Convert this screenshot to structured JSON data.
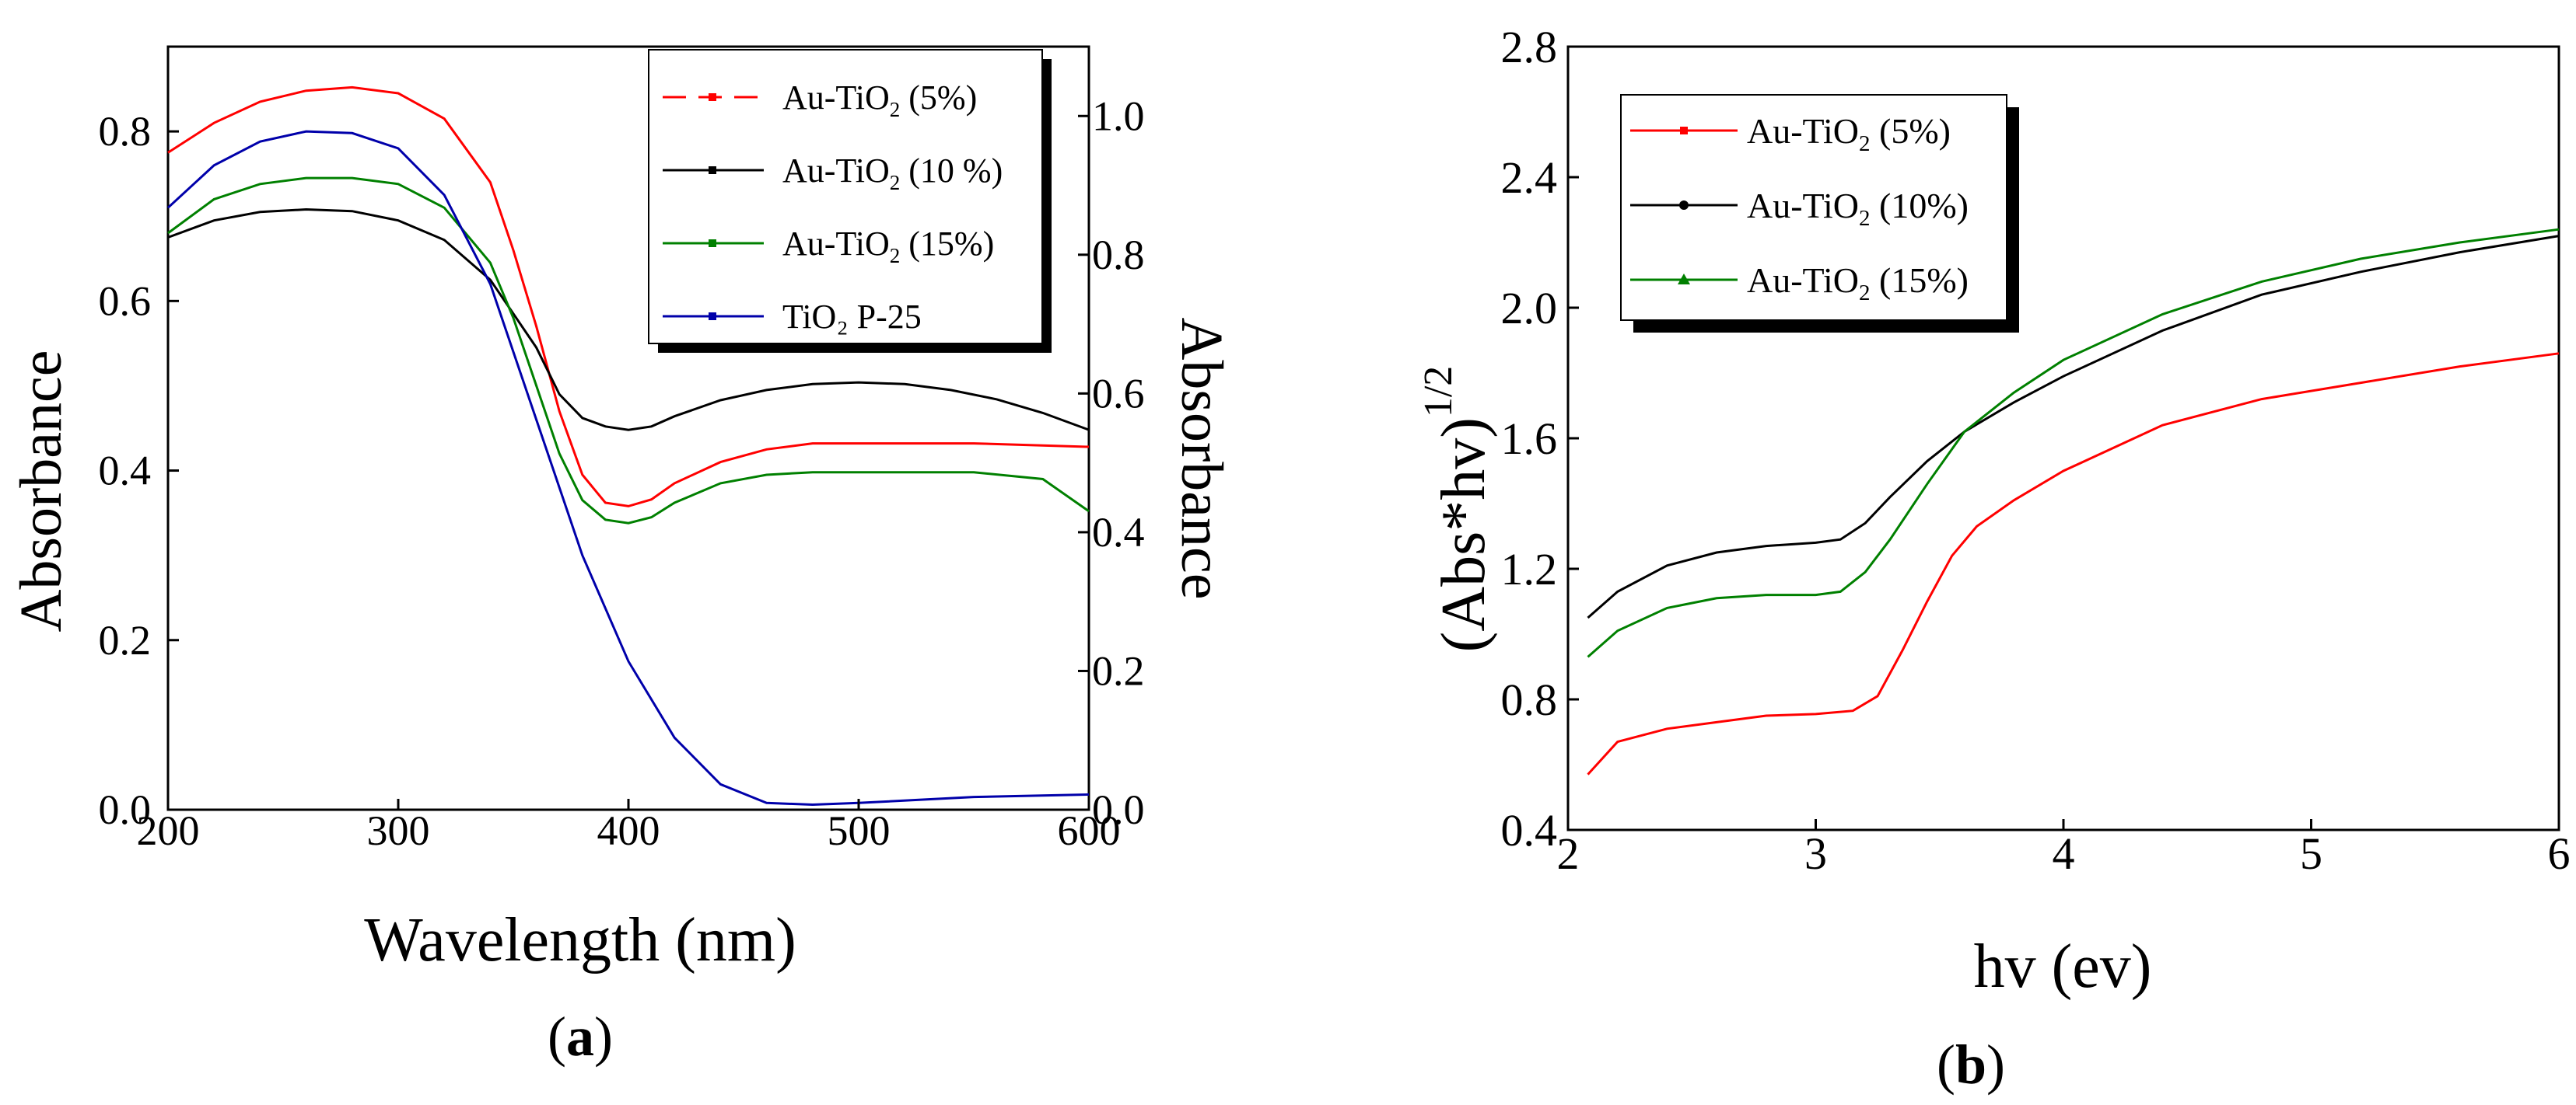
{
  "chart_data": [
    {
      "id": "a",
      "type": "line",
      "panel_label": "a",
      "xlabel": "Wavelength (nm)",
      "ylabel": "Absorbance",
      "ylabel_right": "Absorbance",
      "xlim": [
        200,
        600
      ],
      "ylim": [
        0,
        0.9
      ],
      "ylim_right": [
        0,
        1.1
      ],
      "x_ticks": [
        "200",
        "300",
        "400",
        "500",
        "600"
      ],
      "x_tick_values": [
        200,
        300,
        400,
        500,
        600
      ],
      "y_ticks": [
        "0.0",
        "0.2",
        "0.4",
        "0.6",
        "0.8"
      ],
      "y_tick_values": [
        0,
        0.2,
        0.4,
        0.6,
        0.8
      ],
      "y_ticks_right": [
        "0.0",
        "0.2",
        "0.4",
        "0.6",
        "0.8",
        "1.0"
      ],
      "y_tick_values_right": [
        0,
        0.2,
        0.4,
        0.6,
        0.8,
        1.0
      ],
      "legend_position": "top-right",
      "series": [
        {
          "name": "Au-TiO2 (5%)",
          "legend_main": "Au-TiO",
          "legend_sub": "2",
          "legend_tail": " (5%)",
          "color": "#ff0000",
          "dashed": true,
          "points": [
            [
              200,
              0.775
            ],
            [
              220,
              0.81
            ],
            [
              240,
              0.835
            ],
            [
              260,
              0.848
            ],
            [
              280,
              0.852
            ],
            [
              300,
              0.845
            ],
            [
              320,
              0.815
            ],
            [
              340,
              0.74
            ],
            [
              350,
              0.66
            ],
            [
              360,
              0.57
            ],
            [
              370,
              0.47
            ],
            [
              380,
              0.395
            ],
            [
              390,
              0.362
            ],
            [
              400,
              0.358
            ],
            [
              410,
              0.366
            ],
            [
              420,
              0.385
            ],
            [
              440,
              0.41
            ],
            [
              460,
              0.425
            ],
            [
              480,
              0.432
            ],
            [
              500,
              0.432
            ],
            [
              550,
              0.432
            ],
            [
              600,
              0.428
            ]
          ]
        },
        {
          "name": "Au-TiO2 (10 %)",
          "legend_main": "Au-TiO",
          "legend_sub": "2",
          "legend_tail": " (10 %)",
          "color": "#000000",
          "dashed": false,
          "points": [
            [
              200,
              0.675
            ],
            [
              220,
              0.695
            ],
            [
              240,
              0.705
            ],
            [
              260,
              0.708
            ],
            [
              280,
              0.706
            ],
            [
              300,
              0.695
            ],
            [
              320,
              0.672
            ],
            [
              340,
              0.625
            ],
            [
              360,
              0.545
            ],
            [
              370,
              0.49
            ],
            [
              380,
              0.462
            ],
            [
              390,
              0.452
            ],
            [
              400,
              0.448
            ],
            [
              410,
              0.452
            ],
            [
              420,
              0.464
            ],
            [
              440,
              0.483
            ],
            [
              460,
              0.495
            ],
            [
              480,
              0.502
            ],
            [
              500,
              0.504
            ],
            [
              520,
              0.502
            ],
            [
              540,
              0.495
            ],
            [
              560,
              0.484
            ],
            [
              580,
              0.468
            ],
            [
              600,
              0.448
            ]
          ]
        },
        {
          "name": "Au-TiO2 (15%)",
          "legend_main": "Au-TiO",
          "legend_sub": "2",
          "legend_tail": " (15%)",
          "color": "#008000",
          "dashed": false,
          "points": [
            [
              200,
              0.68
            ],
            [
              220,
              0.72
            ],
            [
              240,
              0.738
            ],
            [
              260,
              0.745
            ],
            [
              280,
              0.745
            ],
            [
              300,
              0.738
            ],
            [
              320,
              0.71
            ],
            [
              340,
              0.645
            ],
            [
              350,
              0.58
            ],
            [
              360,
              0.5
            ],
            [
              370,
              0.42
            ],
            [
              380,
              0.365
            ],
            [
              390,
              0.342
            ],
            [
              400,
              0.338
            ],
            [
              410,
              0.345
            ],
            [
              420,
              0.362
            ],
            [
              440,
              0.385
            ],
            [
              460,
              0.395
            ],
            [
              480,
              0.398
            ],
            [
              500,
              0.398
            ],
            [
              550,
              0.398
            ],
            [
              580,
              0.39
            ],
            [
              600,
              0.352
            ]
          ]
        },
        {
          "name": "TiO₂ P-25",
          "legend_main": "TiO₂ P-25",
          "legend_sub": "",
          "legend_tail": "",
          "color": "#0000aa",
          "dashed": false,
          "points": [
            [
              200,
              0.71
            ],
            [
              220,
              0.76
            ],
            [
              240,
              0.788
            ],
            [
              260,
              0.8
            ],
            [
              280,
              0.798
            ],
            [
              300,
              0.78
            ],
            [
              320,
              0.725
            ],
            [
              340,
              0.62
            ],
            [
              360,
              0.46
            ],
            [
              380,
              0.3
            ],
            [
              400,
              0.175
            ],
            [
              420,
              0.085
            ],
            [
              440,
              0.03
            ],
            [
              460,
              0.008
            ],
            [
              480,
              0.006
            ],
            [
              500,
              0.008
            ],
            [
              550,
              0.015
            ],
            [
              600,
              0.018
            ]
          ]
        }
      ]
    },
    {
      "id": "b",
      "type": "line",
      "panel_label": "b",
      "xlabel": "hv (ev)",
      "ylabel_main": "(Abs*hv)",
      "ylabel_sup": "1/2",
      "xlim": [
        2,
        6
      ],
      "ylim": [
        0.4,
        2.8
      ],
      "x_ticks": [
        "2",
        "3",
        "4",
        "5",
        "6"
      ],
      "x_tick_values": [
        2,
        3,
        4,
        5,
        6
      ],
      "y_ticks": [
        "0.4",
        "0.8",
        "1.2",
        "1.6",
        "2.0",
        "2.4",
        "2.8"
      ],
      "y_tick_values": [
        0.4,
        0.8,
        1.2,
        1.6,
        2.0,
        2.4,
        2.8
      ],
      "legend_position": "top-left",
      "series": [
        {
          "name": "Au-TiO2 (5%)",
          "legend_main": "Au-TiO",
          "legend_sub": "2",
          "legend_tail": " (5%)",
          "color": "#ff0000",
          "marker": "square",
          "points": [
            [
              2.08,
              0.57
            ],
            [
              2.2,
              0.67
            ],
            [
              2.4,
              0.71
            ],
            [
              2.6,
              0.73
            ],
            [
              2.8,
              0.75
            ],
            [
              3.0,
              0.755
            ],
            [
              3.15,
              0.765
            ],
            [
              3.25,
              0.81
            ],
            [
              3.35,
              0.95
            ],
            [
              3.45,
              1.1
            ],
            [
              3.55,
              1.24
            ],
            [
              3.65,
              1.33
            ],
            [
              3.8,
              1.41
            ],
            [
              4.0,
              1.5
            ],
            [
              4.4,
              1.64
            ],
            [
              4.8,
              1.72
            ],
            [
              5.2,
              1.77
            ],
            [
              5.6,
              1.82
            ],
            [
              6.0,
              1.86
            ]
          ]
        },
        {
          "name": "Au-TiO2 (10%)",
          "legend_main": "Au-TiO",
          "legend_sub": "2",
          "legend_tail": " (10%)",
          "color": "#000000",
          "marker": "circle",
          "points": [
            [
              2.08,
              1.05
            ],
            [
              2.2,
              1.13
            ],
            [
              2.4,
              1.21
            ],
            [
              2.6,
              1.25
            ],
            [
              2.8,
              1.27
            ],
            [
              3.0,
              1.28
            ],
            [
              3.1,
              1.29
            ],
            [
              3.2,
              1.34
            ],
            [
              3.3,
              1.42
            ],
            [
              3.45,
              1.53
            ],
            [
              3.6,
              1.62
            ],
            [
              3.8,
              1.71
            ],
            [
              4.0,
              1.79
            ],
            [
              4.4,
              1.93
            ],
            [
              4.8,
              2.04
            ],
            [
              5.2,
              2.11
            ],
            [
              5.6,
              2.17
            ],
            [
              6.0,
              2.22
            ]
          ]
        },
        {
          "name": "Au-TiO2 (15%)",
          "legend_main": "Au-TiO",
          "legend_sub": "2",
          "legend_tail": " (15%)",
          "color": "#008000",
          "marker": "triangle",
          "points": [
            [
              2.08,
              0.93
            ],
            [
              2.2,
              1.01
            ],
            [
              2.4,
              1.08
            ],
            [
              2.6,
              1.11
            ],
            [
              2.8,
              1.12
            ],
            [
              3.0,
              1.12
            ],
            [
              3.1,
              1.13
            ],
            [
              3.2,
              1.19
            ],
            [
              3.3,
              1.29
            ],
            [
              3.45,
              1.46
            ],
            [
              3.6,
              1.62
            ],
            [
              3.8,
              1.74
            ],
            [
              4.0,
              1.84
            ],
            [
              4.4,
              1.98
            ],
            [
              4.8,
              2.08
            ],
            [
              5.2,
              2.15
            ],
            [
              5.6,
              2.2
            ],
            [
              6.0,
              2.24
            ]
          ]
        }
      ]
    }
  ]
}
